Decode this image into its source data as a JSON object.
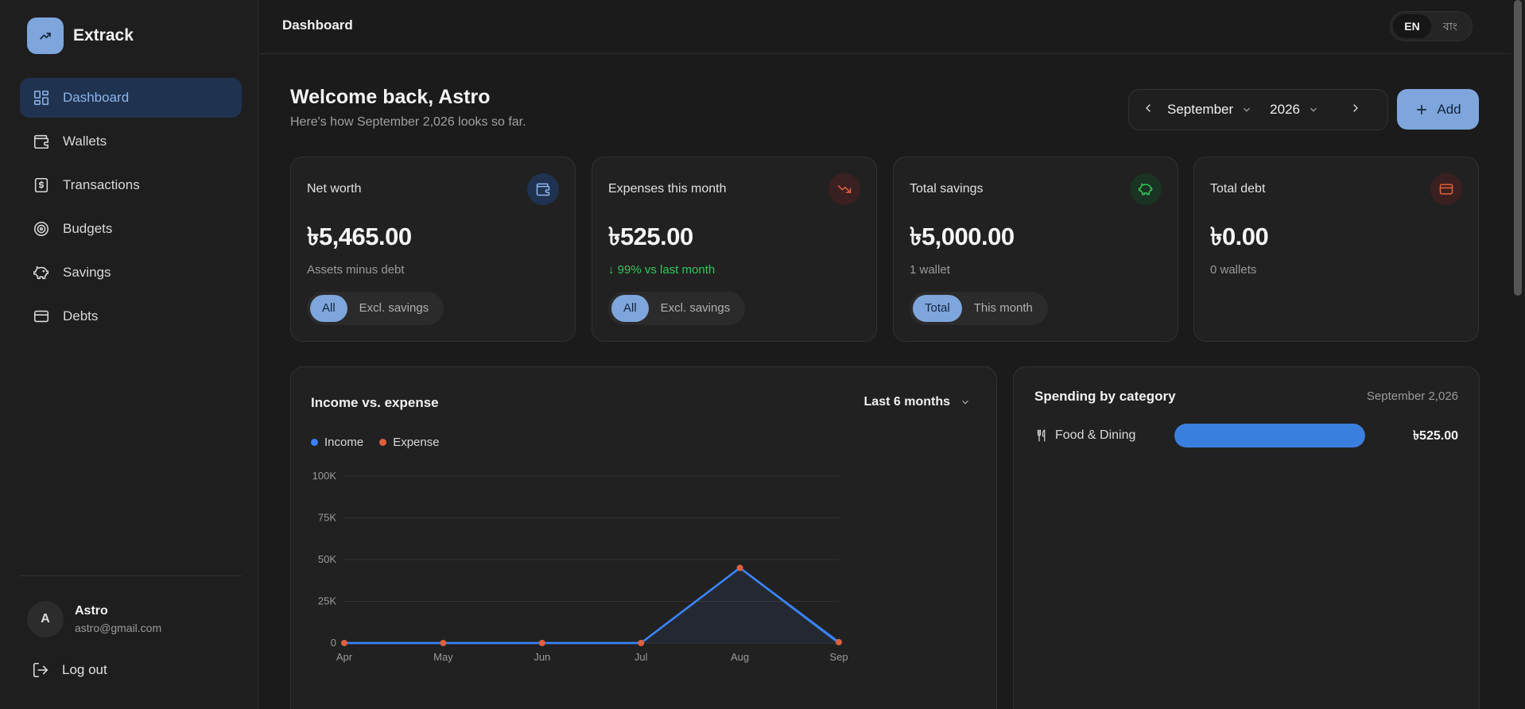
{
  "brand": {
    "name": "Extrack"
  },
  "sidebar": {
    "items": [
      {
        "label": "Dashboard",
        "icon": "dashboard-icon",
        "active": true
      },
      {
        "label": "Wallets",
        "icon": "wallet-icon",
        "active": false
      },
      {
        "label": "Transactions",
        "icon": "receipt-icon",
        "active": false
      },
      {
        "label": "Budgets",
        "icon": "target-icon",
        "active": false
      },
      {
        "label": "Savings",
        "icon": "piggy-bank-icon",
        "active": false
      },
      {
        "label": "Debts",
        "icon": "credit-card-icon",
        "active": false
      }
    ],
    "user": {
      "initial": "A",
      "name": "Astro",
      "email": "astro@gmail.com"
    },
    "logout_label": "Log out"
  },
  "topbar": {
    "title": "Dashboard",
    "languages": [
      "EN",
      "বাং"
    ],
    "active_language": "EN"
  },
  "header": {
    "welcome": "Welcome back, Astro",
    "subtitle": "Here's how September 2,026 looks so far.",
    "month": "September",
    "year": "2026",
    "add_label": "Add"
  },
  "cards": [
    {
      "label": "Net worth",
      "value": "৳5,465.00",
      "sub": "Assets minus debt",
      "icon": "wallet-icon",
      "toggle": [
        "All",
        "Excl. savings"
      ],
      "toggle_active": 0
    },
    {
      "label": "Expenses this month",
      "value": "৳525.00",
      "sub": "↓ 99% vs last month",
      "icon": "trending-down-icon",
      "toggle": [
        "All",
        "Excl. savings"
      ],
      "toggle_active": 0
    },
    {
      "label": "Total savings",
      "value": "৳5,000.00",
      "sub": "1 wallet",
      "icon": "piggy-bank-icon",
      "toggle": [
        "Total",
        "This month"
      ],
      "toggle_active": 0
    },
    {
      "label": "Total debt",
      "value": "৳0.00",
      "sub": "0 wallets",
      "icon": "credit-card-icon"
    }
  ],
  "colors": {
    "accent": "#7ea6dc",
    "income": "#3b82f6",
    "expense": "#e0603f",
    "positive": "#32c75a"
  },
  "income_chart": {
    "title": "Income vs. expense",
    "range_label": "Last 6 months"
  },
  "chart_data": {
    "type": "line",
    "categories": [
      "Apr",
      "May",
      "Jun",
      "Jul",
      "Aug",
      "Sep"
    ],
    "series": [
      {
        "name": "Income",
        "values": [
          0,
          0,
          0,
          0,
          45000,
          0
        ]
      },
      {
        "name": "Expense",
        "values": [
          0,
          0,
          0,
          0,
          45000,
          525
        ]
      }
    ],
    "yticks": [
      "0",
      "25K",
      "50K",
      "75K",
      "100K"
    ],
    "ylim": [
      0,
      100000
    ],
    "grid": true,
    "legend": "top-left"
  },
  "spending": {
    "title": "Spending by category",
    "date": "September 2,026",
    "categories": [
      {
        "name": "Food & Dining",
        "amount": "৳525.00",
        "share": 1.0,
        "icon": "utensils-icon"
      }
    ]
  }
}
